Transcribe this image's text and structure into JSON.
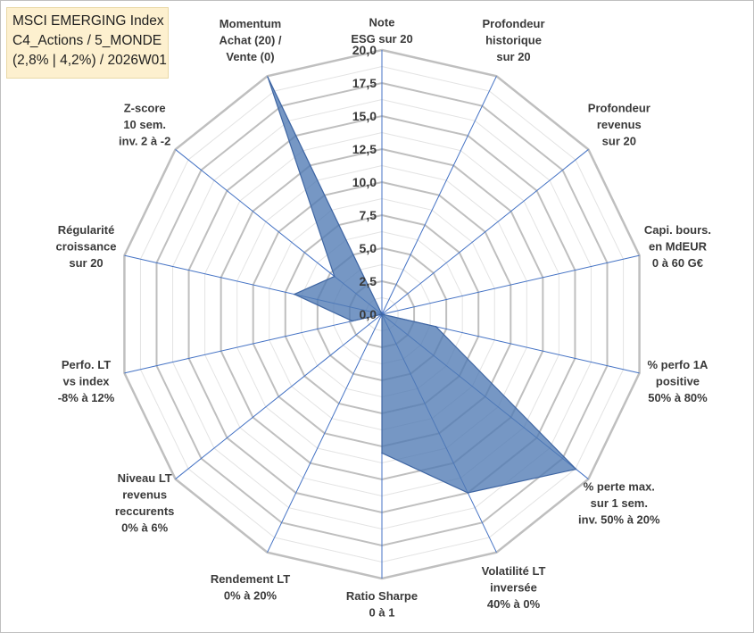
{
  "title": {
    "line1": "MSCI EMERGING Index",
    "line2": "C4_Actions / 5_MONDE",
    "line3": "(2,8% | 4,2%) / 2026W01"
  },
  "chart_data": {
    "type": "radar",
    "rlim": [
      0,
      20
    ],
    "ticks": [
      "0,0",
      "2,5",
      "5,0",
      "7,5",
      "10,0",
      "12,5",
      "15,0",
      "17,5",
      "20,0"
    ],
    "categories": [
      [
        "Note",
        "ESG sur 20"
      ],
      [
        "Profondeur",
        "historique",
        "sur 20"
      ],
      [
        "Profondeur",
        "revenus",
        "sur 20"
      ],
      [
        "Capi. bours.",
        "en MdEUR",
        "0 à 60 G€"
      ],
      [
        "% perfo 1A",
        "positive",
        "50% à 80%"
      ],
      [
        "% perte max.",
        "sur 1 sem.",
        "inv. 50% à 20%"
      ],
      [
        "Volatilité LT",
        "inversée",
        "40% à 0%"
      ],
      [
        "Ratio Sharpe",
        "0 à 1"
      ],
      [
        "Rendement LT",
        "0% à 20%"
      ],
      [
        "Niveau LT",
        "revenus",
        "reccurents",
        "0% à 6%"
      ],
      [
        "Perfo. LT",
        "vs index",
        "-8% à 12%"
      ],
      [
        "Régularité",
        "croissance",
        "sur 20"
      ],
      [
        "Z-score",
        "10 sem.",
        "inv. 2 à -2"
      ],
      [
        "Momentum",
        "Achat (20) /",
        "Vente (0)"
      ]
    ],
    "series": [
      {
        "values": [
          0,
          0,
          0,
          0,
          4.2,
          18.8,
          15.0,
          10.5,
          0,
          0,
          2.3,
          6.8,
          4.6,
          19.9
        ],
        "color": "#4f7ab3"
      }
    ],
    "grid": true,
    "grid_color": "#bfbfbf",
    "minor_grid_color": "#e3e3e3",
    "spoke_color": "#4472c4"
  }
}
